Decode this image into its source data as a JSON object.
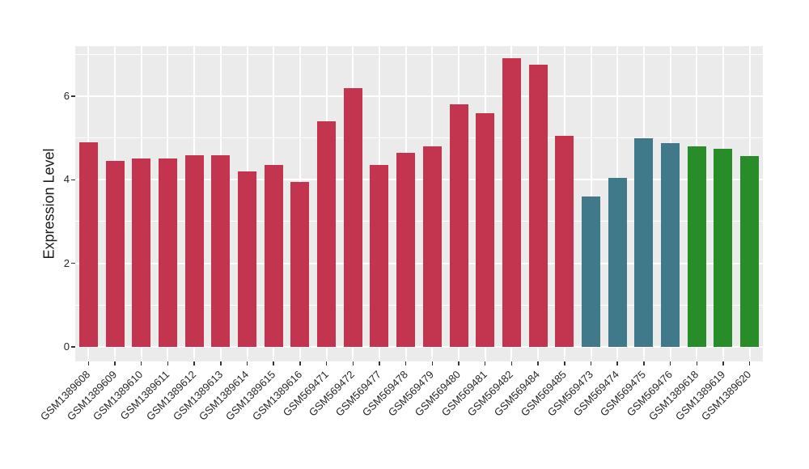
{
  "chart_data": {
    "type": "bar",
    "title": "",
    "ylabel": "Expression Level",
    "xlabel": "",
    "ylim": [
      -0.35,
      7.2
    ],
    "yticks": [
      0,
      2,
      4,
      6
    ],
    "yticks_minor": [
      1,
      3,
      5,
      7
    ],
    "grid": "on",
    "legend": "none",
    "panel_bg": "#EBEBEB",
    "grid_color": "#FFFFFF",
    "axis_tick_color": "#333333",
    "axis_text_color": "#262626",
    "group_colors": {
      "group1": "#C3344E",
      "group2": "#40798A",
      "group3": "#288C28"
    },
    "bars": [
      {
        "label": "GSM1389608",
        "value": 4.9,
        "group": "group1"
      },
      {
        "label": "GSM1389609",
        "value": 4.45,
        "group": "group1"
      },
      {
        "label": "GSM1389610",
        "value": 4.5,
        "group": "group1"
      },
      {
        "label": "GSM1389611",
        "value": 4.5,
        "group": "group1"
      },
      {
        "label": "GSM1389612",
        "value": 4.58,
        "group": "group1"
      },
      {
        "label": "GSM1389613",
        "value": 4.58,
        "group": "group1"
      },
      {
        "label": "GSM1389614",
        "value": 4.2,
        "group": "group1"
      },
      {
        "label": "GSM1389615",
        "value": 4.35,
        "group": "group1"
      },
      {
        "label": "GSM1389616",
        "value": 3.95,
        "group": "group1"
      },
      {
        "label": "GSM569471",
        "value": 5.4,
        "group": "group1"
      },
      {
        "label": "GSM569472",
        "value": 6.2,
        "group": "group1"
      },
      {
        "label": "GSM569477",
        "value": 4.35,
        "group": "group1"
      },
      {
        "label": "GSM569478",
        "value": 4.65,
        "group": "group1"
      },
      {
        "label": "GSM569479",
        "value": 4.8,
        "group": "group1"
      },
      {
        "label": "GSM569480",
        "value": 5.8,
        "group": "group1"
      },
      {
        "label": "GSM569481",
        "value": 5.6,
        "group": "group1"
      },
      {
        "label": "GSM569482",
        "value": 6.9,
        "group": "group1"
      },
      {
        "label": "GSM569484",
        "value": 6.75,
        "group": "group1"
      },
      {
        "label": "GSM569485",
        "value": 5.05,
        "group": "group1"
      },
      {
        "label": "GSM569473",
        "value": 3.6,
        "group": "group2"
      },
      {
        "label": "GSM569474",
        "value": 4.05,
        "group": "group2"
      },
      {
        "label": "GSM569475",
        "value": 5.0,
        "group": "group2"
      },
      {
        "label": "GSM569476",
        "value": 4.88,
        "group": "group2"
      },
      {
        "label": "GSM1389618",
        "value": 4.8,
        "group": "group3"
      },
      {
        "label": "GSM1389619",
        "value": 4.75,
        "group": "group3"
      },
      {
        "label": "GSM1389620",
        "value": 4.57,
        "group": "group3"
      }
    ]
  }
}
